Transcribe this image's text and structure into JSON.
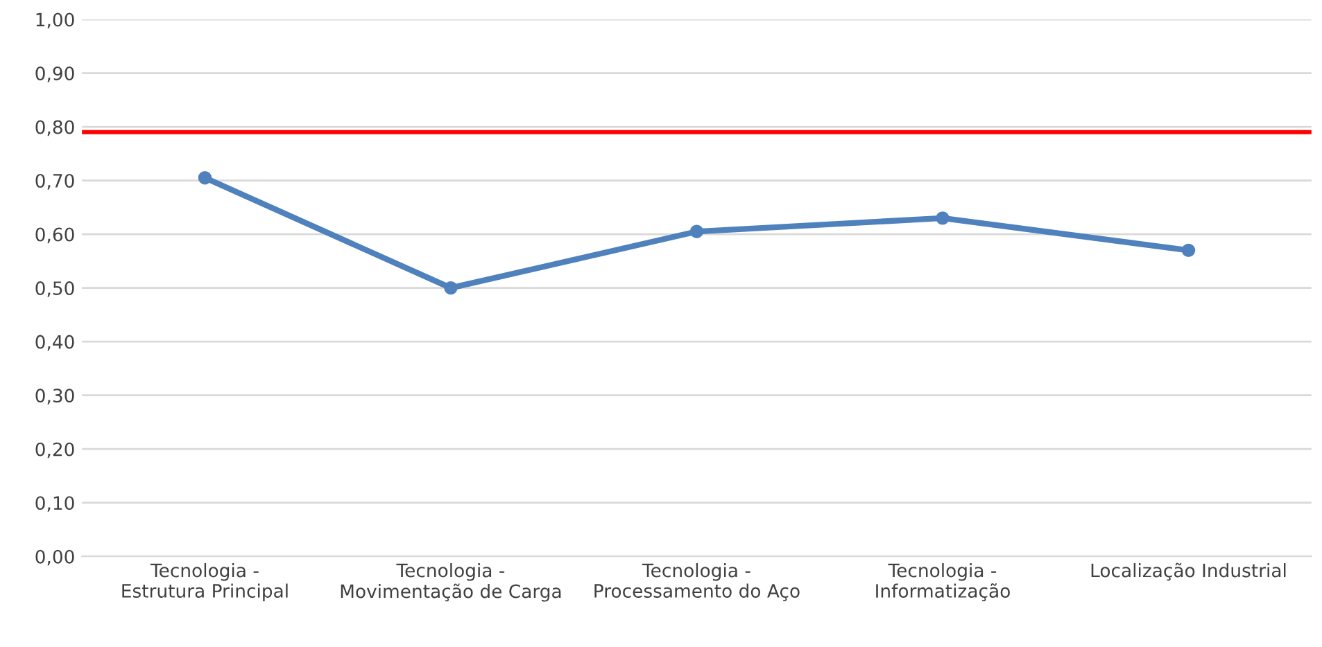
{
  "chart_data": {
    "type": "line",
    "categories": [
      "Tecnologia - Estrutura Principal",
      "Tecnologia - Movimentação de Carga",
      "Tecnologia - Processamento do Aço",
      "Tecnologia - Informatização",
      "Localização Industrial"
    ],
    "series": [
      {
        "color": "#4f81bd",
        "values": [
          0.705,
          0.5,
          0.605,
          0.63,
          0.57
        ]
      }
    ],
    "ylim": [
      0,
      1
    ],
    "yticks": [
      {
        "value": 0,
        "label": "0,00"
      },
      {
        "value": 0.1,
        "label": "0,10"
      },
      {
        "value": 0.2,
        "label": "0,20"
      },
      {
        "value": 0.3,
        "label": "0,30"
      },
      {
        "value": 0.4,
        "label": "0,40"
      },
      {
        "value": 0.5,
        "label": "0,50"
      },
      {
        "value": 0.6,
        "label": "0,60"
      },
      {
        "value": 0.7,
        "label": "0,70"
      },
      {
        "value": 0.8,
        "label": "0,80"
      },
      {
        "value": 0.9,
        "label": "0,90"
      },
      {
        "value": 1,
        "label": "1,00"
      }
    ],
    "ref_lines": [
      {
        "axis": "y",
        "value": 0.79,
        "color": "#ff0000"
      }
    ],
    "grid": "y",
    "marker": "circle",
    "line_style": "solid",
    "legend": false
  }
}
